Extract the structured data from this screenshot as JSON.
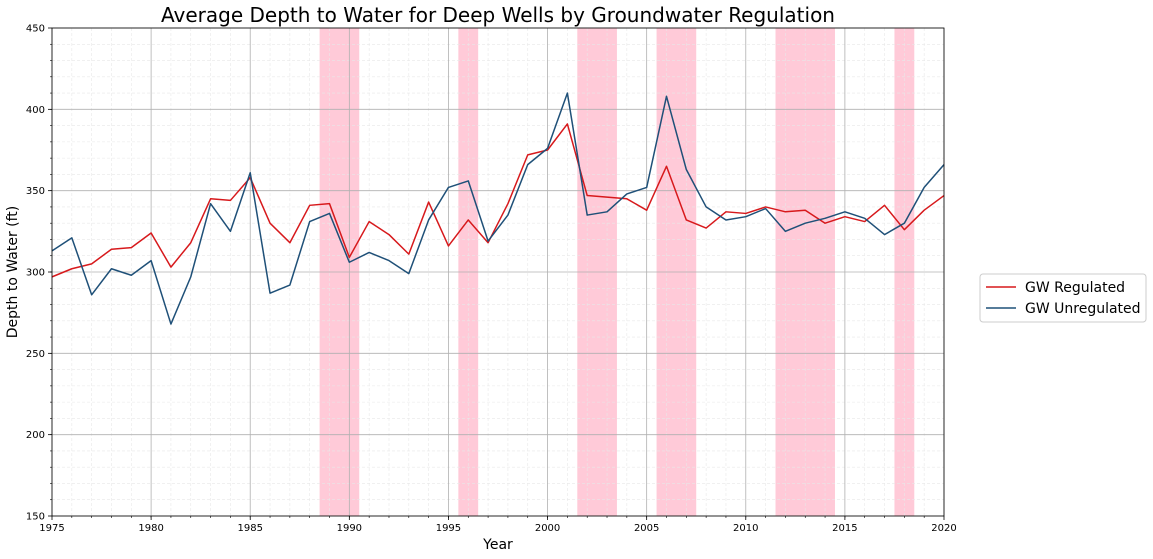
{
  "chart_data": {
    "type": "line",
    "title": "Average Depth to Water for Deep Wells by Groundwater Regulation",
    "xlabel": "Year",
    "ylabel": "Depth to Water (ft)",
    "xlim": [
      1975,
      2020
    ],
    "ylim": [
      150,
      450
    ],
    "x_ticks": [
      1975,
      1980,
      1985,
      1990,
      1995,
      2000,
      2005,
      2010,
      2015,
      2020
    ],
    "y_ticks": [
      150,
      200,
      250,
      300,
      350,
      400,
      450
    ],
    "grid": true,
    "minor_grid": true,
    "legend_position": "right",
    "shaded_ranges": [
      [
        1988.5,
        1990.5
      ],
      [
        1995.5,
        1996.5
      ],
      [
        2001.5,
        2003.5
      ],
      [
        2005.5,
        2007.5
      ],
      [
        2011.5,
        2014.5
      ],
      [
        2017.5,
        2018.5
      ]
    ],
    "shade_color": "#ffcad8",
    "x": [
      1975,
      1976,
      1977,
      1978,
      1979,
      1980,
      1981,
      1982,
      1983,
      1984,
      1985,
      1986,
      1987,
      1988,
      1989,
      1990,
      1991,
      1992,
      1993,
      1994,
      1995,
      1996,
      1997,
      1998,
      1999,
      2000,
      2001,
      2002,
      2003,
      2004,
      2005,
      2006,
      2007,
      2008,
      2009,
      2010,
      2011,
      2012,
      2013,
      2014,
      2015,
      2016,
      2017,
      2018,
      2019,
      2020
    ],
    "series": [
      {
        "name": "GW Regulated",
        "color": "#d7191c",
        "values": [
          297,
          302,
          305,
          314,
          315,
          324,
          303,
          318,
          345,
          344,
          358,
          330,
          318,
          341,
          342,
          309,
          331,
          323,
          311,
          343,
          316,
          332,
          318,
          342,
          372,
          375,
          391,
          347,
          346,
          345,
          338,
          365,
          332,
          327,
          337,
          336,
          340,
          337,
          338,
          330,
          334,
          331,
          341,
          326,
          338,
          347
        ]
      },
      {
        "name": "GW Unregulated",
        "color": "#1f5078",
        "values": [
          313,
          321,
          286,
          302,
          298,
          307,
          268,
          297,
          342,
          325,
          361,
          287,
          292,
          331,
          336,
          306,
          312,
          307,
          299,
          332,
          352,
          356,
          319,
          335,
          366,
          376,
          410,
          335,
          337,
          348,
          352,
          408,
          363,
          340,
          332,
          334,
          339,
          325,
          330,
          333,
          337,
          333,
          323,
          330,
          352,
          366
        ]
      }
    ]
  }
}
